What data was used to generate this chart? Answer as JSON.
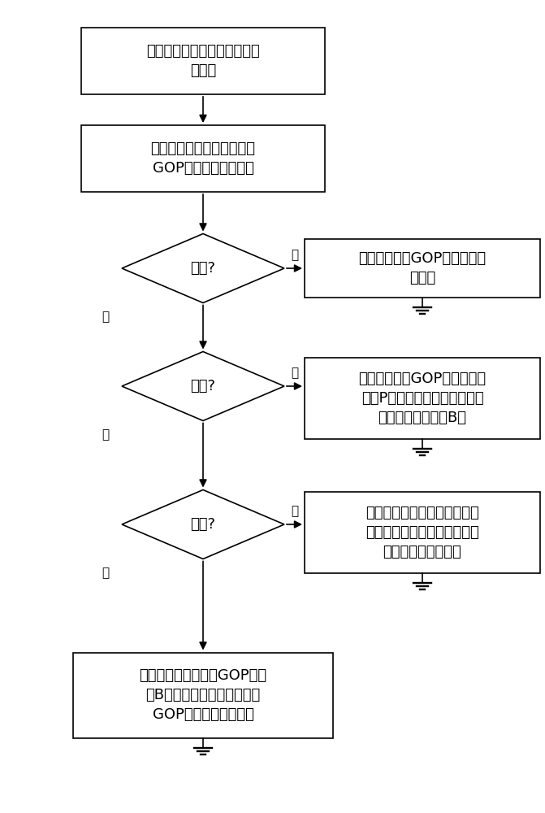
{
  "bg_color": "#ffffff",
  "box_color": "#ffffff",
  "box_edge_color": "#000000",
  "line_color": "#000000",
  "text_color": "#000000",
  "font_size": 13,
  "label_font_size": 11,
  "ground_symbol_color": "#000000",
  "b1_text": "用户界面发出切换命令，传到\n交换机",
  "b2_text": "加速模块查看当前图像帧的\nGOP位置，选择切换点",
  "d1_text": "补帧?",
  "b3_text": "补帧：将当前GOP的所有帧补\n充完整",
  "d2_text": "回跳?",
  "b4_text": "回跳：将当前GOP的当前帧之\n前的P帧和原始帧补充完整，忽\n略当前帧之前所有B帧",
  "d3_text": "构造?",
  "b5_text": "构造：将当前帧或其前后的某\n个增量帧改造为原始帧，该帧\n之后的数据补充完整",
  "b6_text": "提前传送：舍弃当前GOP末尾\n的B帧数据，提前传送下一个\nGOP原始帧及其后数据",
  "yes_label": "是",
  "no_label": "否"
}
